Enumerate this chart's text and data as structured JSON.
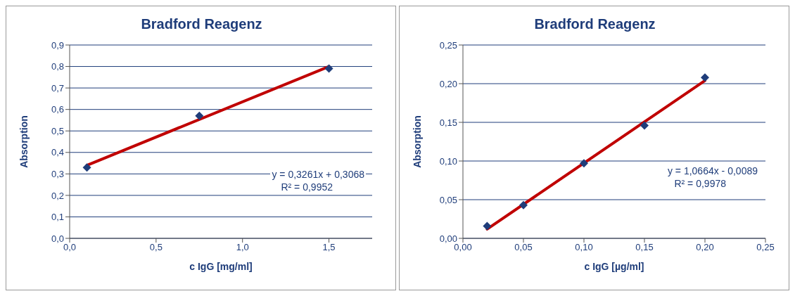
{
  "chart_data": [
    {
      "type": "scatter",
      "title": "Bradford Reagenz",
      "xlabel": "c IgG [mg/ml]",
      "ylabel": "Absorption",
      "series": [
        {
          "type": "scatter",
          "color": "#1f3d7a",
          "x": [
            0.1,
            0.75,
            1.5
          ],
          "values": [
            0.33,
            0.57,
            0.79
          ],
          "marker": "diamond"
        },
        {
          "type": "line",
          "color": "#c00000",
          "x": [
            0.1,
            1.5
          ],
          "values": [
            0.34,
            0.8
          ],
          "marker": "none"
        }
      ],
      "xlim": [
        0,
        1.75
      ],
      "xticks": [
        {
          "value": 0,
          "label": "0,0"
        },
        {
          "value": 0.5,
          "label": "0,5"
        },
        {
          "value": 1,
          "label": "1,0"
        },
        {
          "value": 1.5,
          "label": "1,5"
        }
      ],
      "ylim": [
        0,
        0.9
      ],
      "yticks": [
        {
          "value": 0,
          "label": "0,0"
        },
        {
          "value": 0.1,
          "label": "0,1"
        },
        {
          "value": 0.2,
          "label": "0,2"
        },
        {
          "value": 0.3,
          "label": "0,3"
        },
        {
          "value": 0.4,
          "label": "0,4"
        },
        {
          "value": 0.5,
          "label": "0,5"
        },
        {
          "value": 0.6,
          "label": "0,6"
        },
        {
          "value": 0.7,
          "label": "0,7"
        },
        {
          "value": 0.8,
          "label": "0,8"
        },
        {
          "value": 0.9,
          "label": "0,9"
        }
      ],
      "grid": "y",
      "legend": false,
      "annotations": [
        "y = 0,3261x + 0,3068",
        "R² = 0,9952"
      ]
    },
    {
      "type": "scatter",
      "title": "Bradford Reagenz",
      "xlabel": "c IgG [µg/ml]",
      "ylabel": "Absorption",
      "series": [
        {
          "type": "scatter",
          "color": "#1f3d7a",
          "x": [
            0.02,
            0.05,
            0.1,
            0.15,
            0.2
          ],
          "values": [
            0.016,
            0.043,
            0.097,
            0.146,
            0.208
          ],
          "marker": "diamond"
        },
        {
          "type": "line",
          "color": "#c00000",
          "x": [
            0.02,
            0.2
          ],
          "values": [
            0.012,
            0.204
          ],
          "marker": "none"
        }
      ],
      "xlim": [
        0,
        0.25
      ],
      "xticks": [
        {
          "value": 0,
          "label": "0,00"
        },
        {
          "value": 0.05,
          "label": "0,05"
        },
        {
          "value": 0.1,
          "label": "0,10"
        },
        {
          "value": 0.15,
          "label": "0,15"
        },
        {
          "value": 0.2,
          "label": "0,20"
        },
        {
          "value": 0.25,
          "label": "0,25"
        }
      ],
      "ylim": [
        0,
        0.25
      ],
      "yticks": [
        {
          "value": 0,
          "label": "0,00"
        },
        {
          "value": 0.05,
          "label": "0,05"
        },
        {
          "value": 0.1,
          "label": "0,10"
        },
        {
          "value": 0.15,
          "label": "0,15"
        },
        {
          "value": 0.2,
          "label": "0,20"
        },
        {
          "value": 0.25,
          "label": "0,25"
        }
      ],
      "grid": "y",
      "legend": false,
      "annotations": [
        "y = 1,0664x - 0,0089",
        "R² = 0,9978"
      ]
    }
  ]
}
